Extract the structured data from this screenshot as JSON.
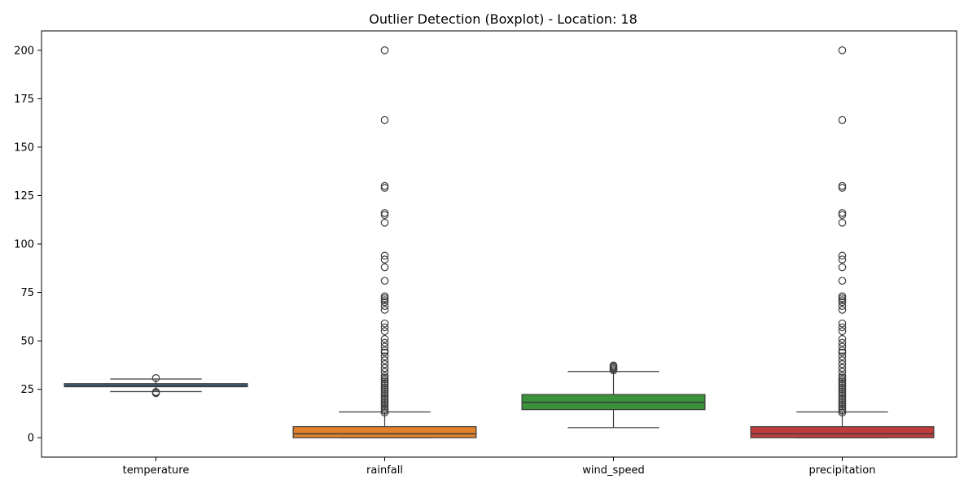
{
  "chart_data": {
    "type": "boxplot",
    "title": "Outlier Detection (Boxplot) - Location: 18",
    "xlabel": "",
    "ylabel": "",
    "ylim": [
      -10,
      210
    ],
    "yticks": [
      0,
      25,
      50,
      75,
      100,
      125,
      150,
      175,
      200
    ],
    "grid": false,
    "categories": [
      "temperature",
      "rainfall",
      "wind_speed",
      "precipitation"
    ],
    "series": [
      {
        "category": "temperature",
        "color": "#3274a1",
        "whisker_low": 23.8,
        "q1": 26.3,
        "median": 27.0,
        "q3": 27.9,
        "whisker_high": 30.3,
        "outliers": [
          23.0,
          23.4,
          23.6,
          30.8
        ]
      },
      {
        "category": "rainfall",
        "color": "#e1812c",
        "whisker_low": 0,
        "q1": 0,
        "median": 2,
        "q3": 5.7,
        "whisker_high": 13.3,
        "outliers": [
          13,
          14,
          15,
          16,
          17,
          18,
          19,
          20,
          21,
          22,
          23,
          24,
          25,
          26,
          27,
          28,
          29,
          30,
          31,
          32,
          34,
          36,
          38,
          40,
          42,
          44,
          45,
          47,
          49,
          51,
          55,
          57,
          59,
          66,
          68,
          70,
          71,
          72,
          73,
          81,
          88,
          92,
          94,
          111,
          115,
          116,
          129,
          130,
          164,
          200
        ]
      },
      {
        "category": "wind_speed",
        "color": "#3a923a",
        "whisker_low": 5.2,
        "q1": 14.5,
        "median": 18.3,
        "q3": 22.3,
        "whisker_high": 34.2,
        "outliers": [
          34.8,
          35.5,
          36.2,
          36.8,
          37.3
        ]
      },
      {
        "category": "precipitation",
        "color": "#c03d3e",
        "whisker_low": 0,
        "q1": 0,
        "median": 2,
        "q3": 5.7,
        "whisker_high": 13.3,
        "outliers": [
          13,
          14,
          15,
          16,
          17,
          18,
          19,
          20,
          21,
          22,
          23,
          24,
          25,
          26,
          27,
          28,
          29,
          30,
          31,
          32,
          34,
          36,
          38,
          40,
          42,
          44,
          45,
          47,
          49,
          51,
          55,
          57,
          59,
          66,
          68,
          70,
          71,
          72,
          73,
          81,
          88,
          92,
          94,
          111,
          115,
          116,
          129,
          130,
          164,
          200
        ]
      }
    ]
  }
}
